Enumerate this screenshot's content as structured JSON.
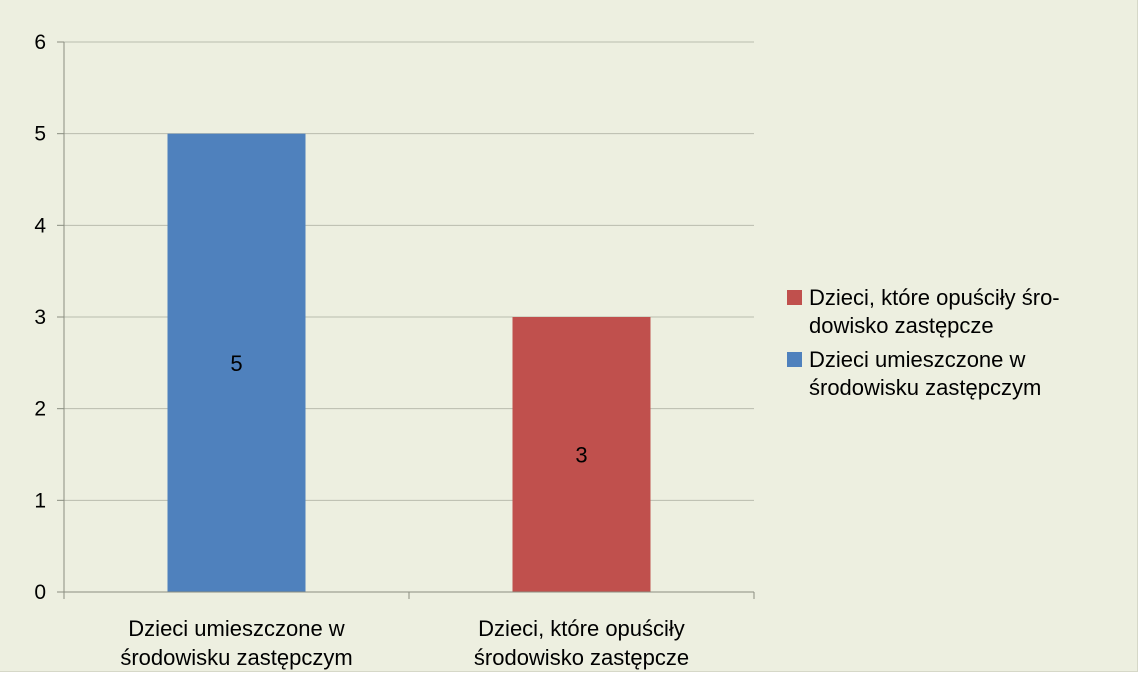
{
  "chart_data": {
    "type": "bar",
    "categories": [
      [
        "Dzieci umieszczone w",
        "środowisku zastępczym"
      ],
      [
        "Dzieci, które opuściły",
        "środowisko zastępcze"
      ]
    ],
    "values": [
      5,
      3
    ],
    "data_labels": [
      "5",
      "3"
    ],
    "bar_colors": [
      "#4f81bd",
      "#c0504d"
    ],
    "ylim": [
      0,
      6
    ],
    "y_ticks": [
      "0",
      "1",
      "2",
      "3",
      "4",
      "5",
      "6"
    ],
    "grid": true,
    "legend_position": "right",
    "legend": [
      {
        "lines": [
          "Dzieci, które opuściły śro-",
          "dowisko zastępcze"
        ],
        "color": "#c0504d"
      },
      {
        "lines": [
          "Dzieci umieszczone w",
          "środowisku zastępczym"
        ],
        "color": "#4f81bd"
      }
    ],
    "background_color": "#edefe0",
    "gridline_color": "#b9bcae"
  }
}
